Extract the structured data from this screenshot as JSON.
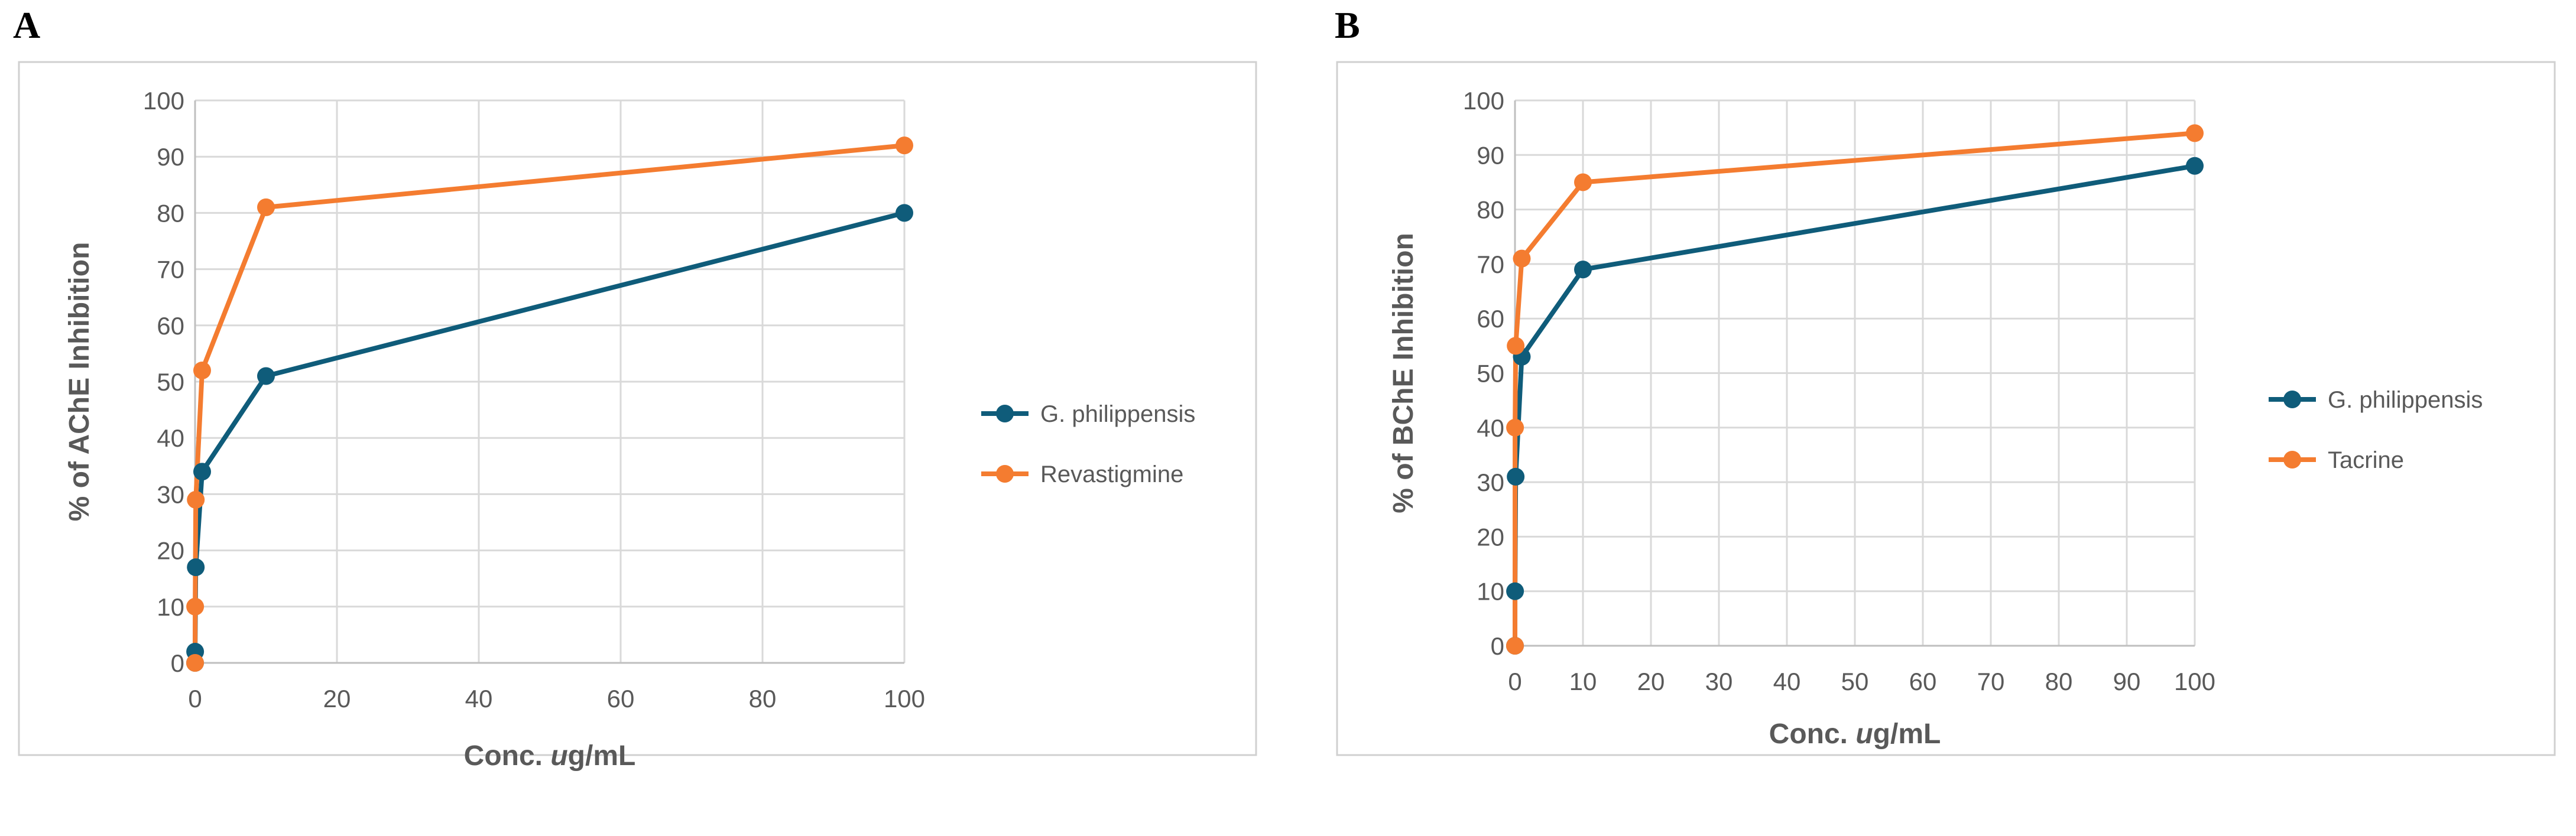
{
  "panels": {
    "a_label": "A",
    "b_label": "B"
  },
  "colors": {
    "series1": "#0f5c7a",
    "series2": "#f47c30",
    "grid": "#d9d9d9",
    "axis": "#bfbfbf",
    "frame": "#d0d0d0"
  },
  "chart_data": [
    {
      "type": "line",
      "panel": "A",
      "title": "",
      "xlabel_prefix": "Conc. ",
      "xlabel_italic": "u",
      "xlabel_suffix": "g/mL",
      "ylabel": "% of AChE Inhibition",
      "xlim": [
        0,
        100
      ],
      "ylim": [
        0,
        100
      ],
      "xticks": [
        0,
        20,
        40,
        60,
        80,
        100
      ],
      "yticks": [
        0,
        10,
        20,
        30,
        40,
        50,
        60,
        70,
        80,
        90,
        100
      ],
      "grid": true,
      "legend_position": "right",
      "series": [
        {
          "name": "G. philippensis",
          "x": [
            0,
            0.01,
            0.1,
            1,
            10,
            100
          ],
          "y": [
            0,
            2,
            17,
            34,
            51,
            80
          ]
        },
        {
          "name": "Revastigmine",
          "x": [
            0,
            0.01,
            0.1,
            1,
            10,
            100
          ],
          "y": [
            0,
            10,
            29,
            52,
            81,
            92
          ]
        }
      ]
    },
    {
      "type": "line",
      "panel": "B",
      "title": "",
      "xlabel_prefix": "Conc. ",
      "xlabel_italic": "u",
      "xlabel_suffix": "g/mL",
      "ylabel": "% of BChE Inhibition",
      "xlim": [
        0,
        100
      ],
      "ylim": [
        0,
        100
      ],
      "xticks": [
        0,
        10,
        20,
        30,
        40,
        50,
        60,
        70,
        80,
        90,
        100
      ],
      "yticks": [
        0,
        10,
        20,
        30,
        40,
        50,
        60,
        70,
        80,
        90,
        100
      ],
      "grid": true,
      "legend_position": "right",
      "series": [
        {
          "name": "G. philippensis",
          "x": [
            0,
            0.01,
            0.1,
            1,
            10,
            100
          ],
          "y": [
            0,
            10,
            31,
            53,
            69,
            88
          ]
        },
        {
          "name": "Tacrine",
          "x": [
            0,
            0.01,
            0.1,
            1,
            10,
            100
          ],
          "y": [
            0,
            40,
            55,
            71,
            85,
            94
          ]
        }
      ]
    }
  ]
}
